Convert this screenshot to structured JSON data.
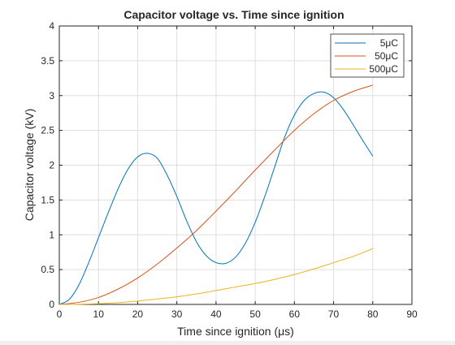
{
  "chart_data": {
    "type": "line",
    "title": "Capacitor voltage vs. Time since ignition",
    "xlabel": "Time since ignition (μs)",
    "ylabel": "Capacitor voltage (kV)",
    "xlim": [
      0,
      90
    ],
    "ylim": [
      0,
      4
    ],
    "xticks": [
      "0",
      "10",
      "20",
      "30",
      "40",
      "50",
      "60",
      "70",
      "80",
      "90"
    ],
    "yticks": [
      "0",
      "0.5",
      "1",
      "1.5",
      "2",
      "2.5",
      "3",
      "3.5",
      "4"
    ],
    "grid": true,
    "legend_position": "top-right",
    "series": [
      {
        "name": "5μC",
        "color": "#0072BD",
        "x": [
          0,
          2.5,
          5,
          7.5,
          10,
          12.5,
          15,
          17.5,
          20,
          22.5,
          25,
          27.5,
          30,
          32.5,
          35,
          37.5,
          40,
          42.5,
          45,
          47.5,
          50,
          52.5,
          55,
          57.5,
          60,
          62.5,
          65,
          67.5,
          70,
          72.5,
          75,
          77.5,
          80
        ],
        "y": [
          0,
          0.07,
          0.28,
          0.6,
          0.96,
          1.32,
          1.66,
          1.94,
          2.12,
          2.17,
          2.1,
          1.86,
          1.55,
          1.2,
          0.9,
          0.7,
          0.6,
          0.59,
          0.68,
          0.88,
          1.18,
          1.56,
          1.98,
          2.4,
          2.72,
          2.93,
          3.03,
          3.05,
          2.97,
          2.8,
          2.58,
          2.35,
          2.13
        ]
      },
      {
        "name": "50μC",
        "color": "#D95319",
        "x": [
          0,
          5,
          10,
          15,
          20,
          25,
          30,
          35,
          40,
          45,
          50,
          55,
          60,
          65,
          70,
          75,
          80
        ],
        "y": [
          0,
          0.03,
          0.1,
          0.22,
          0.38,
          0.58,
          0.81,
          1.06,
          1.34,
          1.63,
          1.93,
          2.22,
          2.5,
          2.74,
          2.93,
          3.06,
          3.15
        ]
      },
      {
        "name": "500μC",
        "color": "#EDB120",
        "x": [
          0,
          5,
          10,
          15,
          20,
          25,
          30,
          35,
          40,
          45,
          50,
          55,
          60,
          65,
          70,
          75,
          80
        ],
        "y": [
          0,
          0.002,
          0.01,
          0.025,
          0.048,
          0.078,
          0.11,
          0.15,
          0.2,
          0.25,
          0.3,
          0.36,
          0.43,
          0.51,
          0.6,
          0.69,
          0.8
        ]
      }
    ]
  }
}
